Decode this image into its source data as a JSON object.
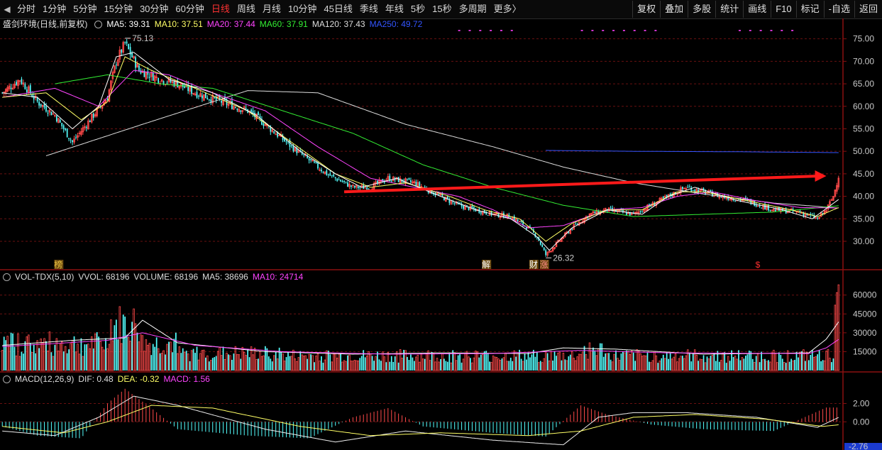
{
  "toolbar": {
    "periods": [
      "分时",
      "1分钟",
      "5分钟",
      "15分钟",
      "30分钟",
      "60分钟",
      "日线",
      "周线",
      "月线",
      "10分钟",
      "45日线",
      "季线",
      "年线",
      "5秒",
      "15秒",
      "多周期",
      "更多〉"
    ],
    "active_period": "日线",
    "tools": [
      "复权",
      "叠加",
      "多股",
      "统计",
      "画线",
      "F10",
      "标记",
      "-自选",
      "返回"
    ]
  },
  "main_panel": {
    "stock_name": "盛剑环境(日线,前复权)",
    "indicators": [
      {
        "label": "MA5: 39.31",
        "color": "#ffffff"
      },
      {
        "label": "MA10: 37.51",
        "color": "#ffff66"
      },
      {
        "label": "MA20: 37.44",
        "color": "#ff44ff"
      },
      {
        "label": "MA60: 37.91",
        "color": "#33ee33"
      },
      {
        "label": "MA120: 37.43",
        "color": "#dddddd"
      },
      {
        "label": "MA250: 49.72",
        "color": "#3355ff"
      }
    ],
    "high_label": "75.13",
    "low_label": "26.32",
    "markers": [
      "榜",
      "解",
      "财",
      "涨",
      "$"
    ]
  },
  "volume_panel": {
    "indicators": [
      {
        "label": "VOL-TDX(5,10)",
        "color": "#dddddd"
      },
      {
        "label": "VVOL: 68196",
        "color": "#dddddd"
      },
      {
        "label": "VOLUME: 68196",
        "color": "#dddddd"
      },
      {
        "label": "MA5: 38696",
        "color": "#dddddd"
      },
      {
        "label": "MA10: 24714",
        "color": "#ff44ff"
      }
    ]
  },
  "macd_panel": {
    "indicators": [
      {
        "label": "MACD(12,26,9)",
        "color": "#dddddd"
      },
      {
        "label": "DIF: 0.48",
        "color": "#dddddd"
      },
      {
        "label": "DEA: -0.32",
        "color": "#ffff66"
      },
      {
        "label": "MACD: 1.56",
        "color": "#ff44ff"
      }
    ]
  },
  "colors": {
    "up": "#ff4a4a",
    "down": "#54ffff",
    "grid": "#6a1010",
    "arrow": "#ff1a1a"
  },
  "chart_data": [
    {
      "type": "candlestick",
      "ylim": [
        24,
        77
      ],
      "yticks": [
        30,
        35,
        40,
        45,
        50,
        55,
        60,
        65,
        70,
        75
      ],
      "key_points": [
        {
          "label": "high",
          "value": 75.13
        },
        {
          "label": "low",
          "value": 26.32
        },
        {
          "label": "last_close",
          "value": 44.5
        }
      ],
      "close_path": [
        [
          0,
          63
        ],
        [
          10,
          66
        ],
        [
          20,
          61
        ],
        [
          30,
          58
        ],
        [
          40,
          52
        ],
        [
          50,
          57
        ],
        [
          60,
          62
        ],
        [
          65,
          70
        ],
        [
          70,
          74
        ],
        [
          78,
          68
        ],
        [
          90,
          66
        ],
        [
          100,
          65
        ],
        [
          110,
          63
        ],
        [
          125,
          61
        ],
        [
          140,
          59
        ],
        [
          150,
          56
        ],
        [
          165,
          51
        ],
        [
          185,
          45
        ],
        [
          200,
          42
        ],
        [
          210,
          42
        ],
        [
          220,
          44
        ],
        [
          235,
          43
        ],
        [
          245,
          41
        ],
        [
          260,
          38
        ],
        [
          270,
          37
        ],
        [
          280,
          36
        ],
        [
          290,
          35.5
        ],
        [
          300,
          33
        ],
        [
          305,
          31
        ],
        [
          310,
          27
        ],
        [
          315,
          29
        ],
        [
          325,
          33
        ],
        [
          335,
          36
        ],
        [
          345,
          37
        ],
        [
          360,
          36
        ],
        [
          370,
          38
        ],
        [
          380,
          40
        ],
        [
          390,
          42
        ],
        [
          400,
          41
        ],
        [
          410,
          40
        ],
        [
          425,
          39
        ],
        [
          440,
          37
        ],
        [
          455,
          36.5
        ],
        [
          465,
          35
        ],
        [
          470,
          37
        ],
        [
          474,
          40
        ],
        [
          477,
          44.5
        ]
      ],
      "ma": [
        {
          "name": "MA250",
          "color": "#3355ff",
          "points": [
            [
              310,
              50.2
            ],
            [
              360,
              50
            ],
            [
              420,
              49.9
            ],
            [
              477,
              49.7
            ]
          ]
        },
        {
          "name": "MA120",
          "color": "#dddddd",
          "points": [
            [
              25,
              49
            ],
            [
              80,
              56
            ],
            [
              140,
              63.5
            ],
            [
              180,
              63
            ],
            [
              230,
              56
            ],
            [
              280,
              51
            ],
            [
              320,
              46.5
            ],
            [
              360,
              43
            ],
            [
              400,
              40.5
            ],
            [
              440,
              38.5
            ],
            [
              477,
              37.4
            ]
          ]
        },
        {
          "name": "MA60",
          "color": "#33ee33",
          "points": [
            [
              30,
              65
            ],
            [
              60,
              67
            ],
            [
              90,
              65
            ],
            [
              120,
              64
            ],
            [
              160,
              59
            ],
            [
              200,
              54
            ],
            [
              240,
              47
            ],
            [
              280,
              42
            ],
            [
              320,
              38
            ],
            [
              360,
              35.5
            ],
            [
              400,
              36
            ],
            [
              440,
              36.5
            ],
            [
              477,
              37.9
            ]
          ]
        },
        {
          "name": "MA20",
          "color": "#ff44ff",
          "points": [
            [
              0,
              62
            ],
            [
              30,
              64
            ],
            [
              55,
              60
            ],
            [
              75,
              68
            ],
            [
              95,
              67
            ],
            [
              120,
              63
            ],
            [
              150,
              59
            ],
            [
              180,
              51
            ],
            [
              210,
              44
            ],
            [
              235,
              42
            ],
            [
              260,
              40
            ],
            [
              280,
              37
            ],
            [
              300,
              33
            ],
            [
              320,
              33.5
            ],
            [
              345,
              37
            ],
            [
              365,
              37.5
            ],
            [
              385,
              40
            ],
            [
              405,
              41
            ],
            [
              430,
              39
            ],
            [
              455,
              37.5
            ],
            [
              477,
              37.4
            ]
          ]
        },
        {
          "name": "MA10",
          "color": "#ffff66",
          "points": [
            [
              0,
              62
            ],
            [
              25,
              63
            ],
            [
              45,
              57
            ],
            [
              60,
              61
            ],
            [
              70,
              71
            ],
            [
              85,
              68
            ],
            [
              110,
              64
            ],
            [
              140,
              59
            ],
            [
              165,
              52
            ],
            [
              190,
              45
            ],
            [
              210,
              42
            ],
            [
              230,
              43
            ],
            [
              255,
              40
            ],
            [
              275,
              37
            ],
            [
              295,
              35
            ],
            [
              310,
              30
            ],
            [
              325,
              34
            ],
            [
              345,
              37
            ],
            [
              365,
              37
            ],
            [
              385,
              41
            ],
            [
              400,
              41
            ],
            [
              425,
              39
            ],
            [
              450,
              37
            ],
            [
              465,
              35.5
            ],
            [
              477,
              37.5
            ]
          ]
        },
        {
          "name": "MA5",
          "color": "#ffffff",
          "points": [
            [
              0,
              63
            ],
            [
              20,
              62
            ],
            [
              40,
              55
            ],
            [
              55,
              60
            ],
            [
              65,
              71
            ],
            [
              75,
              72
            ],
            [
              95,
              66
            ],
            [
              120,
              63
            ],
            [
              145,
              58
            ],
            [
              170,
              50
            ],
            [
              190,
              45
            ],
            [
              205,
              42
            ],
            [
              225,
              44
            ],
            [
              250,
              40
            ],
            [
              270,
              37
            ],
            [
              290,
              35
            ],
            [
              305,
              31
            ],
            [
              312,
              28
            ],
            [
              325,
              33
            ],
            [
              345,
              37
            ],
            [
              365,
              36
            ],
            [
              380,
              40
            ],
            [
              395,
              42
            ],
            [
              420,
              39
            ],
            [
              445,
              37
            ],
            [
              462,
              35
            ],
            [
              477,
              39.3
            ]
          ]
        }
      ],
      "arrow": {
        "from": [
          195,
          41
        ],
        "to": [
          470,
          44.5
        ]
      }
    },
    {
      "type": "bar",
      "name": "volume",
      "ylim": [
        0,
        70000
      ],
      "yticks": [
        15000,
        30000,
        45000,
        60000
      ],
      "last_values": [
        52000,
        62000,
        68196
      ],
      "ma": [
        {
          "name": "MA5",
          "color": "#ffffff",
          "points": [
            [
              0,
              20000
            ],
            [
              40,
              24000
            ],
            [
              70,
              26000
            ],
            [
              80,
              40000
            ],
            [
              100,
              22000
            ],
            [
              150,
              15000
            ],
            [
              200,
              13000
            ],
            [
              250,
              14000
            ],
            [
              300,
              13500
            ],
            [
              320,
              18000
            ],
            [
              350,
              17000
            ],
            [
              400,
              13000
            ],
            [
              460,
              14000
            ],
            [
              470,
              25000
            ],
            [
              477,
              38696
            ]
          ]
        },
        {
          "name": "MA10",
          "color": "#ff44ff",
          "points": [
            [
              0,
              19000
            ],
            [
              60,
              24000
            ],
            [
              80,
              30000
            ],
            [
              110,
              20000
            ],
            [
              160,
              15000
            ],
            [
              220,
              13000
            ],
            [
              280,
              13500
            ],
            [
              330,
              16000
            ],
            [
              380,
              14000
            ],
            [
              460,
              13500
            ],
            [
              470,
              18000
            ],
            [
              477,
              24714
            ]
          ]
        }
      ]
    },
    {
      "type": "bar",
      "name": "macd",
      "ylim": [
        -2.76,
        4.2
      ],
      "yticks": [
        0,
        2
      ],
      "axis_min_label": "-2.76",
      "bars": [
        [
          0,
          -0.5
        ],
        [
          20,
          -1.5
        ],
        [
          45,
          -1.8
        ],
        [
          60,
          2.0
        ],
        [
          70,
          3.6
        ],
        [
          85,
          1.5
        ],
        [
          100,
          -0.8
        ],
        [
          140,
          -1.5
        ],
        [
          175,
          -1.8
        ],
        [
          200,
          0.5
        ],
        [
          220,
          1.5
        ],
        [
          240,
          -0.5
        ],
        [
          280,
          -1.2
        ],
        [
          310,
          -1.6
        ],
        [
          330,
          1.8
        ],
        [
          345,
          0.8
        ],
        [
          370,
          -0.3
        ],
        [
          400,
          -0.8
        ],
        [
          440,
          -1.0
        ],
        [
          470,
          1.56
        ]
      ],
      "dif": [
        [
          0,
          -1
        ],
        [
          30,
          -1.5
        ],
        [
          55,
          0.5
        ],
        [
          75,
          2.8
        ],
        [
          100,
          1.8
        ],
        [
          150,
          -0.8
        ],
        [
          190,
          -2.2
        ],
        [
          230,
          -1.0
        ],
        [
          280,
          -2
        ],
        [
          320,
          -2.5
        ],
        [
          340,
          0.5
        ],
        [
          360,
          1.0
        ],
        [
          390,
          1.0
        ],
        [
          430,
          0.5
        ],
        [
          465,
          -0.6
        ],
        [
          477,
          0.48
        ]
      ],
      "dea": [
        [
          0,
          -0.5
        ],
        [
          35,
          -1.2
        ],
        [
          60,
          0.0
        ],
        [
          85,
          1.8
        ],
        [
          120,
          1.5
        ],
        [
          170,
          -0.5
        ],
        [
          210,
          -1.5
        ],
        [
          250,
          -1.2
        ],
        [
          300,
          -1.5
        ],
        [
          330,
          -1.0
        ],
        [
          360,
          0.5
        ],
        [
          395,
          0.8
        ],
        [
          435,
          0.3
        ],
        [
          468,
          -0.5
        ],
        [
          477,
          -0.32
        ]
      ]
    }
  ]
}
